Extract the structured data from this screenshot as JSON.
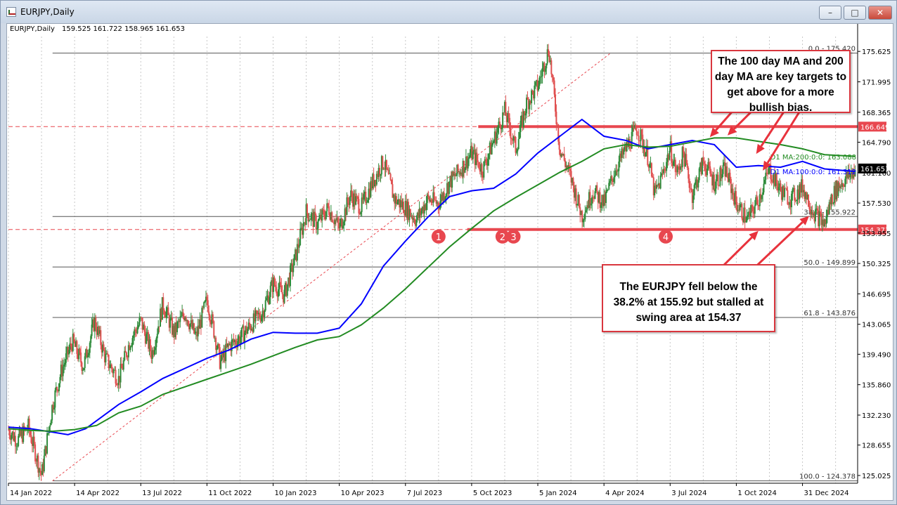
{
  "window": {
    "title": "EURJPY,Daily",
    "minimize_icon": "minimize-icon",
    "maximize_icon": "maximize-icon",
    "close_icon": "close-icon"
  },
  "info_line": {
    "symbol": "EURJPY,Daily",
    "ohlc": "159.525 161.722 158.965 161.653"
  },
  "callouts": {
    "ma_note": [
      "The 100 day MA and 200",
      "day MA are key targets to",
      "get above for a more",
      "bullish bias."
    ],
    "fib_note": [
      "The EURJPY fell below the",
      "38.2% at 155.92 but stalled at",
      "swing area at 154.37"
    ]
  },
  "chart_data": {
    "type": "line",
    "title": "EURJPY,Daily",
    "ylim": [
      124.1,
      177.4
    ],
    "y_ticks": [
      125.025,
      128.655,
      132.23,
      135.86,
      139.49,
      143.065,
      146.695,
      150.325,
      153.955,
      157.53,
      161.16,
      164.79,
      168.365,
      171.995,
      175.625
    ],
    "y_tick_labels": [
      "125.025",
      "128.655",
      "132.230",
      "135.860",
      "139.490",
      "143.065",
      "146.695",
      "150.325",
      "153.955",
      "157.530",
      "161.160",
      "164.790",
      "168.365",
      "171.995",
      "175.625"
    ],
    "x_tick_labels": [
      "14 Jan 2022",
      "14 Apr 2022",
      "13 Jul 2022",
      "11 Oct 2022",
      "10 Jan 2023",
      "10 Apr 2023",
      "7 Jul 2023",
      "5 Oct 2023",
      "5 Jan 2024",
      "4 Apr 2024",
      "3 Jul 2024",
      "1 Oct 2024",
      "31 Dec 2024"
    ],
    "x_tick_index": [
      0,
      1,
      2,
      3,
      4,
      5,
      6,
      7,
      8,
      9,
      10,
      11,
      12
    ],
    "n_months": 38.5,
    "price_close": {
      "t": [
        0,
        0.4,
        0.9,
        1.5,
        2.0,
        2.4,
        2.9,
        3.4,
        3.9,
        4.4,
        5.0,
        5.5,
        6.0,
        6.5,
        7.0,
        7.5,
        8.0,
        8.5,
        9.0,
        9.3,
        9.6,
        10.0,
        10.5,
        11.0,
        11.5,
        12.0,
        12.5,
        13.0,
        13.5,
        14.0,
        14.5,
        15.0,
        15.5,
        16.0,
        16.5,
        17.0,
        17.5,
        18.0,
        18.5,
        19.0,
        19.5,
        20.0,
        20.5,
        21.0,
        21.5,
        22.0,
        22.5,
        23.0,
        23.5,
        24.0,
        24.5,
        25.0,
        25.5,
        26.0,
        26.5,
        27.0,
        27.5,
        28.0,
        28.5,
        29.0,
        29.3,
        29.6,
        30.0,
        30.3,
        30.6,
        31.0,
        31.5,
        32.0,
        32.5,
        33.0,
        33.5,
        34.0,
        34.5,
        35.0,
        35.5,
        36.0,
        36.5,
        37.0,
        37.3,
        37.6,
        38.0,
        38.4
      ],
      "v": [
        130.5,
        129.2,
        130.8,
        125.0,
        133.5,
        137.5,
        141.0,
        138.0,
        143.5,
        139.0,
        136.5,
        141.0,
        143.5,
        139.5,
        145.5,
        142.0,
        144.5,
        141.5,
        146.0,
        142.5,
        138.5,
        140.5,
        141.5,
        143.0,
        144.5,
        148.0,
        146.5,
        151.0,
        156.5,
        155.0,
        157.0,
        154.5,
        158.5,
        157.0,
        160.0,
        162.5,
        158.0,
        157.0,
        155.5,
        158.0,
        157.5,
        160.0,
        161.5,
        163.5,
        161.5,
        165.0,
        168.5,
        164.0,
        169.5,
        171.5,
        176.0,
        164.0,
        160.5,
        156.0,
        159.0,
        157.5,
        161.5,
        164.0,
        166.5,
        163.0,
        158.5,
        160.5,
        164.0,
        161.0,
        163.5,
        158.5,
        162.5,
        160.0,
        161.5,
        157.5,
        155.5,
        158.0,
        161.5,
        159.0,
        158.0,
        159.5,
        156.5,
        155.0,
        158.0,
        159.5,
        160.5,
        161.6
      ]
    },
    "series": [
      {
        "name": "MA:100:0:0",
        "color": "#0000ff",
        "t": [
          0,
          1,
          2,
          2.7,
          3.5,
          5,
          6,
          7,
          8,
          9,
          10,
          11,
          12,
          13,
          14,
          15,
          16,
          17,
          18,
          19,
          20,
          21,
          22,
          23,
          24,
          25,
          26,
          27,
          28,
          29,
          30,
          31,
          32,
          33,
          34,
          35,
          36,
          37,
          38.4
        ],
        "v": [
          130.8,
          130.6,
          130.2,
          129.9,
          130.6,
          133.5,
          135.0,
          136.6,
          137.8,
          139.0,
          140.0,
          141.3,
          142.1,
          142.0,
          142.0,
          142.6,
          145.5,
          150.0,
          153.0,
          155.8,
          158.3,
          159.0,
          159.3,
          161.0,
          163.5,
          165.5,
          167.5,
          165.5,
          165.0,
          164.0,
          164.5,
          165.0,
          164.5,
          161.8,
          162.0,
          161.8,
          162.5,
          161.6,
          161.3
        ]
      },
      {
        "name": "MA:200:0:0",
        "color": "#228b22",
        "t": [
          0,
          1,
          2,
          3,
          4,
          5,
          6,
          7,
          8,
          9,
          10,
          11,
          12,
          13,
          14,
          15,
          16,
          17,
          18,
          19,
          20,
          21,
          22,
          23,
          24,
          25,
          26,
          27,
          28,
          29,
          30,
          31,
          32,
          33,
          34,
          35,
          36,
          37,
          38.4
        ],
        "v": [
          130.6,
          130.4,
          130.3,
          130.5,
          131.0,
          132.5,
          133.3,
          134.7,
          135.6,
          136.5,
          137.4,
          138.3,
          139.3,
          140.3,
          141.2,
          141.6,
          143.0,
          145.0,
          147.3,
          149.8,
          152.3,
          154.5,
          156.6,
          158.2,
          159.7,
          161.2,
          162.5,
          164.0,
          164.5,
          164.2,
          164.3,
          164.8,
          165.3,
          165.3,
          164.9,
          164.5,
          164.0,
          163.3,
          163.1
        ]
      }
    ],
    "ma_labels": [
      {
        "text": "D1 MA:200:0:0: 163.088",
        "color": "#228b22",
        "value": 163.088
      },
      {
        "text": "D1 MA:100:0:0: 161.312",
        "color": "#0000ff",
        "value": 161.312
      }
    ],
    "horizontal_lines": [
      {
        "value": 166.649,
        "label": "166.649",
        "color": "#e8474f"
      },
      {
        "value": 154.373,
        "label": "154.373",
        "color": "#e8474f"
      }
    ],
    "last_price": {
      "value": 161.653,
      "label": "161.653"
    },
    "fib_levels": [
      {
        "value": 175.42,
        "label": "0.0 - 175.420"
      },
      {
        "value": 155.922,
        "label": "38.2 - 155.922"
      },
      {
        "value": 149.899,
        "label": "50.0 - 149.899"
      },
      {
        "value": 143.876,
        "label": "61.8 - 143.876"
      },
      {
        "value": 124.378,
        "label": "100.0 - 124.378"
      }
    ],
    "fib_trend": {
      "from": {
        "t": 2.0,
        "v": 124.378
      },
      "to": {
        "t": 27.3,
        "v": 175.42
      }
    },
    "swing_markers": [
      {
        "text": "1",
        "t": 19.5
      },
      {
        "text": "2",
        "t": 22.4
      },
      {
        "text": "3",
        "t": 22.9
      },
      {
        "text": "4",
        "t": 29.8
      }
    ],
    "arrows_ma": [
      {
        "from_t": 33.0,
        "from_v": 169.0,
        "to_t": 31.8,
        "to_v": 165.4
      },
      {
        "from_t": 33.9,
        "from_v": 169.0,
        "to_t": 32.6,
        "to_v": 165.6
      },
      {
        "from_t": 35.3,
        "from_v": 169.0,
        "to_t": 33.9,
        "to_v": 163.4
      },
      {
        "from_t": 36.0,
        "from_v": 169.0,
        "to_t": 34.2,
        "to_v": 161.4
      }
    ],
    "arrows_fib": [
      {
        "from_t": 32.0,
        "from_v": 149.0,
        "to_t": 34.0,
        "to_v": 154.2
      },
      {
        "from_t": 33.5,
        "from_v": 149.0,
        "to_t": 36.3,
        "to_v": 156.0
      }
    ]
  }
}
